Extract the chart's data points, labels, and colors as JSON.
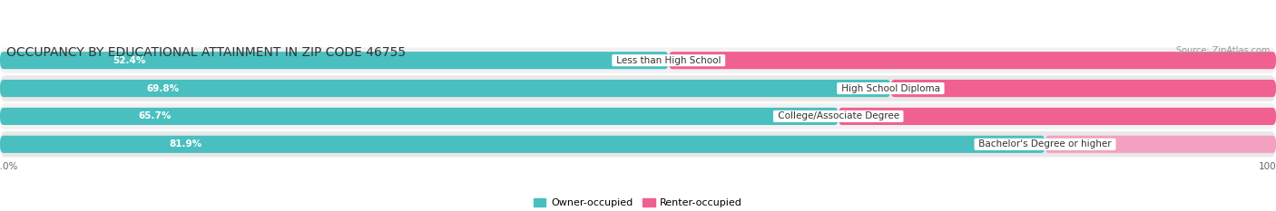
{
  "title": "OCCUPANCY BY EDUCATIONAL ATTAINMENT IN ZIP CODE 46755",
  "source": "Source: ZipAtlas.com",
  "categories": [
    "Less than High School",
    "High School Diploma",
    "College/Associate Degree",
    "Bachelor's Degree or higher"
  ],
  "owner_pct": [
    52.4,
    69.8,
    65.7,
    81.9
  ],
  "renter_pct": [
    47.6,
    30.2,
    34.3,
    18.1
  ],
  "owner_color": "#4abfbf",
  "renter_colors": [
    "#f06090",
    "#f06090",
    "#f06090",
    "#f4a0c0"
  ],
  "row_bg_color_odd": "#f2f2f2",
  "row_bg_color_even": "#e8e8e8",
  "title_fontsize": 10,
  "source_fontsize": 7,
  "label_fontsize": 7.5,
  "pct_fontsize": 7.5,
  "legend_fontsize": 8,
  "axis_label_fontsize": 7.5,
  "background_color": "#ffffff",
  "fig_width": 14.06,
  "fig_height": 2.33
}
